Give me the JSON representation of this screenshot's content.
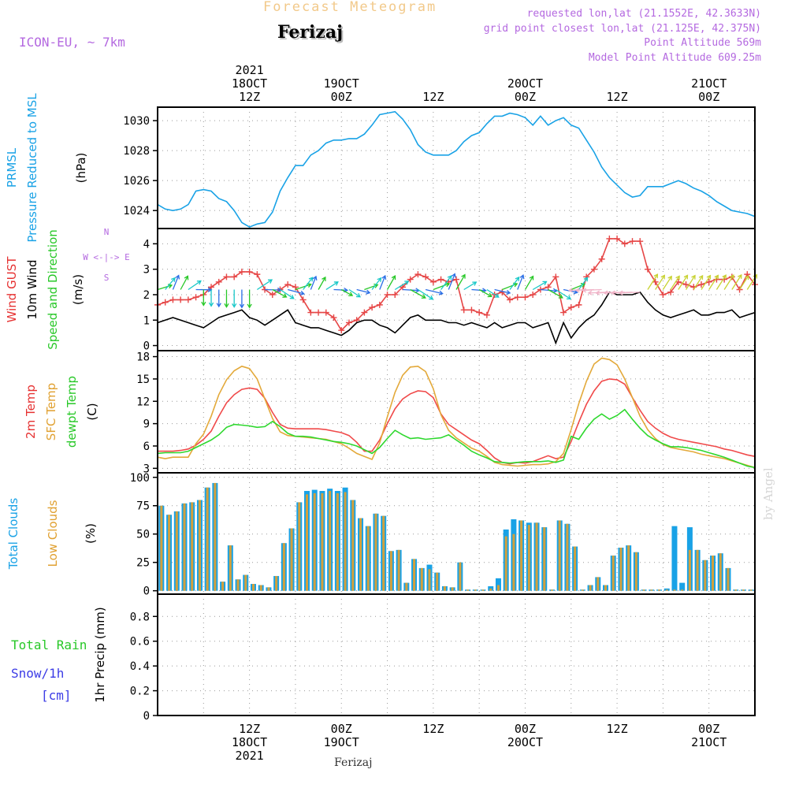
{
  "header": {
    "title": "Forecast Meteogram",
    "city": "Ferizaj",
    "model": "ICON-EU, ~ 7km",
    "requested": "requested lon,lat (21.1552E, 42.3633N)",
    "grid_point": "grid point closest lon,lat (21.125E, 42.375N)",
    "point_alt": "Point Altitude 569m",
    "model_alt": "Model Point Altitude 609.25m"
  },
  "footer": {
    "city": "Ferizaj",
    "signature": "by Angel"
  },
  "time_axis": {
    "top_labels": [
      {
        "t": 12,
        "lines": [
          "2021",
          "18OCT",
          "12Z"
        ]
      },
      {
        "t": 24,
        "lines": [
          "19OCT",
          "00Z"
        ]
      },
      {
        "t": 36,
        "lines": [
          "12Z"
        ]
      },
      {
        "t": 48,
        "lines": [
          "20OCT",
          "00Z"
        ]
      },
      {
        "t": 60,
        "lines": [
          "12Z"
        ]
      },
      {
        "t": 72,
        "lines": [
          "21OCT",
          "00Z"
        ]
      }
    ],
    "bottom_labels": [
      {
        "t": 12,
        "lines": [
          "12Z",
          "18OCT",
          "2021"
        ]
      },
      {
        "t": 24,
        "lines": [
          "00Z",
          "19OCT"
        ]
      },
      {
        "t": 36,
        "lines": [
          "12Z"
        ]
      },
      {
        "t": 48,
        "lines": [
          "00Z",
          "20OCT"
        ]
      },
      {
        "t": 60,
        "lines": [
          "12Z"
        ]
      },
      {
        "t": 72,
        "lines": [
          "00Z",
          "21OCT"
        ]
      }
    ]
  },
  "chart_data": [
    {
      "id": "pressure",
      "type": "line",
      "ylabel_lines": [
        [
          "PRMSL",
          "#19a2e6"
        ],
        [
          "Pressure Reduced to MSL",
          "#19a2e6"
        ],
        [
          "(hPa)",
          "#000000"
        ]
      ],
      "ylim": [
        1022.8,
        1030.9
      ],
      "yticks": [
        1024,
        1026,
        1028,
        1030
      ],
      "series": [
        {
          "color": "#19a2e6",
          "values": [
            1024.4,
            1024.1,
            1024.0,
            1024.1,
            1024.4,
            1025.3,
            1025.4,
            1025.3,
            1024.8,
            1024.6,
            1024.0,
            1023.2,
            1022.9,
            1023.1,
            1023.2,
            1023.9,
            1025.3,
            1026.2,
            1027.0,
            1027.0,
            1027.7,
            1028.0,
            1028.5,
            1028.7,
            1028.7,
            1028.8,
            1028.8,
            1029.1,
            1029.7,
            1030.4,
            1030.5,
            1030.6,
            1030.1,
            1029.4,
            1028.4,
            1027.9,
            1027.7,
            1027.7,
            1027.7,
            1028.0,
            1028.6,
            1029.0,
            1029.2,
            1029.8,
            1030.3,
            1030.3,
            1030.5,
            1030.4,
            1030.2,
            1029.7,
            1030.3,
            1029.7,
            1030.0,
            1030.2,
            1029.7,
            1029.5,
            1028.7,
            1027.9,
            1026.9,
            1026.2,
            1025.7,
            1025.2,
            1024.9,
            1025.0,
            1025.6,
            1025.6,
            1025.6,
            1025.8,
            1026.0,
            1025.8,
            1025.5,
            1025.3,
            1025.0,
            1024.6,
            1024.3,
            1024.0,
            1023.9,
            1023.8,
            1023.6
          ]
        }
      ]
    },
    {
      "id": "wind",
      "type": "line",
      "ylabel_lines": [
        [
          "Wind GUST",
          "#e63232"
        ],
        [
          "10m Wind",
          "#000000"
        ],
        [
          "Speed and Direction",
          "#28c828"
        ],
        [
          "(m/s)",
          "#000000"
        ]
      ],
      "compass": [
        "N",
        "W <-|-> E",
        "S"
      ],
      "ylim": [
        -0.2,
        4.6
      ],
      "yticks": [
        0,
        1,
        2,
        3,
        4
      ],
      "series": [
        {
          "name": "gust",
          "color": "#e64646",
          "values": [
            1.6,
            1.7,
            1.8,
            1.8,
            1.8,
            1.9,
            2.0,
            2.3,
            2.5,
            2.7,
            2.7,
            2.9,
            2.9,
            2.8,
            2.2,
            2.0,
            2.2,
            2.4,
            2.3,
            1.8,
            1.3,
            1.3,
            1.3,
            1.1,
            0.6,
            0.9,
            1.0,
            1.3,
            1.5,
            1.6,
            2.0,
            2.0,
            2.3,
            2.6,
            2.8,
            2.7,
            2.5,
            2.6,
            2.5,
            2.6,
            1.4,
            1.4,
            1.3,
            1.2,
            2.0,
            2.1,
            1.8,
            1.9,
            1.9,
            2.0,
            2.2,
            2.3,
            2.7,
            1.3,
            1.5,
            1.6,
            2.7,
            3.0,
            3.4,
            4.2,
            4.2,
            4.0,
            4.1,
            4.1,
            3.0,
            2.5,
            2.0,
            2.1,
            2.5,
            2.4,
            2.3,
            2.4,
            2.5,
            2.6,
            2.6,
            2.7,
            2.2,
            2.8,
            2.4
          ]
        },
        {
          "name": "wind10m",
          "color": "#000000",
          "values": [
            0.9,
            1.0,
            1.1,
            1.0,
            0.9,
            0.8,
            0.7,
            0.9,
            1.1,
            1.2,
            1.3,
            1.4,
            1.1,
            1.0,
            0.8,
            1.0,
            1.2,
            1.4,
            0.9,
            0.8,
            0.7,
            0.7,
            0.6,
            0.5,
            0.4,
            0.6,
            0.9,
            1.0,
            1.0,
            0.8,
            0.7,
            0.5,
            0.8,
            1.1,
            1.2,
            1.0,
            1.0,
            1.0,
            0.9,
            0.9,
            0.8,
            0.9,
            0.8,
            0.7,
            0.9,
            0.7,
            0.8,
            0.9,
            0.9,
            0.7,
            0.8,
            0.9,
            0.1,
            0.9,
            0.3,
            0.7,
            1.0,
            1.2,
            1.6,
            2.1,
            2.0,
            2.0,
            2.0,
            2.1,
            1.7,
            1.4,
            1.2,
            1.1,
            1.2,
            1.3,
            1.4,
            1.2,
            1.2,
            1.3,
            1.3,
            1.4,
            1.1,
            1.2,
            1.3
          ]
        }
      ]
    },
    {
      "id": "temperature",
      "type": "line",
      "ylabel_lines": [
        [
          "2m Temp",
          "#e63232"
        ],
        [
          "SFC Temp",
          "#e0a030"
        ],
        [
          "dewpt Temp",
          "#28c828"
        ],
        [
          "(C)",
          "#000000"
        ]
      ],
      "ylim": [
        2.4,
        18.8
      ],
      "yticks": [
        3,
        6,
        9,
        12,
        15,
        18
      ],
      "series": [
        {
          "name": "2m Temp",
          "color": "#f04a4a",
          "values": [
            5.3,
            5.3,
            5.3,
            5.4,
            5.6,
            6.1,
            6.9,
            8.0,
            10.0,
            11.8,
            12.9,
            13.6,
            13.8,
            13.6,
            12.4,
            10.5,
            8.9,
            8.4,
            8.3,
            8.3,
            8.3,
            8.3,
            8.2,
            8.0,
            7.8,
            7.4,
            6.5,
            5.3,
            5.3,
            6.8,
            9.0,
            11.0,
            12.3,
            13.0,
            13.4,
            13.3,
            12.5,
            10.3,
            8.9,
            8.2,
            7.5,
            6.8,
            6.3,
            5.4,
            4.4,
            3.8,
            3.6,
            3.8,
            3.7,
            3.9,
            4.3,
            4.7,
            4.3,
            4.5,
            6.6,
            9.2,
            11.6,
            13.4,
            14.7,
            15.0,
            14.9,
            14.3,
            12.5,
            10.8,
            9.3,
            8.4,
            7.7,
            7.2,
            6.9,
            6.7,
            6.5,
            6.3,
            6.1,
            5.9,
            5.6,
            5.4,
            5.1,
            4.8,
            4.6
          ]
        },
        {
          "name": "SFC Temp",
          "color": "#e3a93a",
          "values": [
            4.5,
            4.3,
            4.5,
            4.5,
            4.5,
            6.3,
            7.6,
            10.0,
            12.9,
            14.9,
            16.1,
            16.7,
            16.4,
            15.0,
            12.3,
            9.7,
            7.9,
            7.4,
            7.3,
            7.2,
            7.1,
            7.0,
            6.9,
            6.6,
            6.3,
            5.7,
            5.0,
            4.6,
            4.2,
            6.4,
            9.9,
            13.2,
            15.5,
            16.6,
            16.7,
            16.0,
            13.7,
            10.2,
            8.1,
            7.1,
            6.4,
            5.7,
            5.3,
            4.6,
            3.8,
            3.5,
            3.4,
            3.3,
            3.4,
            3.5,
            3.5,
            3.6,
            3.9,
            5.0,
            8.2,
            11.7,
            14.7,
            17.0,
            17.8,
            17.6,
            16.9,
            15.0,
            12.5,
            10.0,
            8.2,
            7.0,
            6.2,
            5.8,
            5.6,
            5.4,
            5.2,
            4.9,
            4.7,
            4.5,
            4.3,
            4.0,
            3.7,
            3.4,
            3.1
          ]
        },
        {
          "name": "dewpt Temp",
          "color": "#2ed82e",
          "values": [
            5.0,
            5.1,
            5.1,
            5.1,
            5.3,
            5.8,
            6.3,
            6.8,
            7.5,
            8.5,
            8.9,
            8.8,
            8.7,
            8.5,
            8.6,
            9.3,
            8.6,
            7.7,
            7.3,
            7.3,
            7.2,
            7.0,
            6.8,
            6.6,
            6.5,
            6.3,
            6.0,
            5.5,
            5.0,
            5.8,
            7.0,
            8.1,
            7.5,
            7.0,
            7.1,
            6.9,
            7.0,
            7.1,
            7.5,
            6.8,
            6.1,
            5.3,
            4.8,
            4.4,
            3.9,
            3.8,
            3.7,
            3.8,
            3.9,
            3.9,
            3.9,
            4.0,
            3.8,
            4.1,
            7.3,
            6.9,
            8.4,
            9.6,
            10.3,
            9.6,
            10.1,
            10.9,
            9.6,
            8.4,
            7.4,
            6.8,
            6.3,
            5.9,
            5.9,
            5.8,
            5.6,
            5.4,
            5.1,
            4.8,
            4.5,
            4.1,
            3.7,
            3.3,
            3.1
          ]
        }
      ]
    },
    {
      "id": "clouds",
      "type": "bar",
      "ylabel_lines": [
        [
          "Total Clouds",
          "#19a2e6"
        ],
        [
          "Low Clouds",
          "#e0a030"
        ],
        [
          "(%)",
          "#000000"
        ]
      ],
      "ylim": [
        -3,
        104
      ],
      "yticks": [
        0,
        25,
        50,
        75,
        100
      ],
      "series": [
        {
          "name": "Total Clouds",
          "color": "#19a2e6",
          "values": [
            75,
            67,
            70,
            77,
            78,
            80,
            91,
            95,
            8,
            40,
            10,
            14,
            6,
            5,
            3,
            13,
            42,
            55,
            78,
            88,
            89,
            88,
            90,
            88,
            91,
            80,
            64,
            57,
            68,
            66,
            35,
            36,
            7,
            28,
            20,
            23,
            16,
            4,
            3,
            25,
            1,
            1,
            1,
            4,
            11,
            54,
            63,
            62,
            60,
            60,
            56,
            1,
            62,
            59,
            39,
            1,
            5,
            12,
            5,
            31,
            38,
            40,
            34,
            1,
            1,
            1,
            2,
            57,
            7,
            56,
            36,
            27,
            31,
            33,
            20,
            1,
            1,
            1
          ]
        },
        {
          "name": "Low Clouds",
          "color": "#d2a03c",
          "values": [
            75,
            67,
            70,
            77,
            78,
            80,
            91,
            95,
            8,
            40,
            10,
            14,
            6,
            5,
            3,
            13,
            42,
            55,
            78,
            85,
            86,
            86,
            88,
            86,
            87,
            80,
            64,
            57,
            68,
            66,
            35,
            36,
            7,
            28,
            20,
            19,
            16,
            4,
            3,
            25,
            1,
            1,
            1,
            2,
            5,
            48,
            50,
            62,
            58,
            60,
            56,
            1,
            62,
            59,
            39,
            1,
            5,
            12,
            5,
            31,
            38,
            40,
            34,
            1,
            1,
            1,
            1,
            1,
            1,
            36,
            36,
            27,
            31,
            33,
            20,
            1,
            1,
            1
          ]
        }
      ]
    },
    {
      "id": "precip",
      "type": "bar",
      "ylabel_lines": [
        [
          "1hr Precip (mm)",
          "#000000"
        ]
      ],
      "side_labels": [
        [
          "Total  Rain",
          "#28c828"
        ],
        [
          "Snow/1h",
          "#3c3ce6"
        ],
        [
          "[cm]",
          "#3c3ce6"
        ]
      ],
      "ylim": [
        0,
        0.98
      ],
      "yticks": [
        0,
        0.2,
        0.4,
        0.6,
        0.8
      ],
      "series": [
        {
          "name": "Total Rain",
          "color": "#28c828",
          "values": []
        }
      ]
    }
  ]
}
